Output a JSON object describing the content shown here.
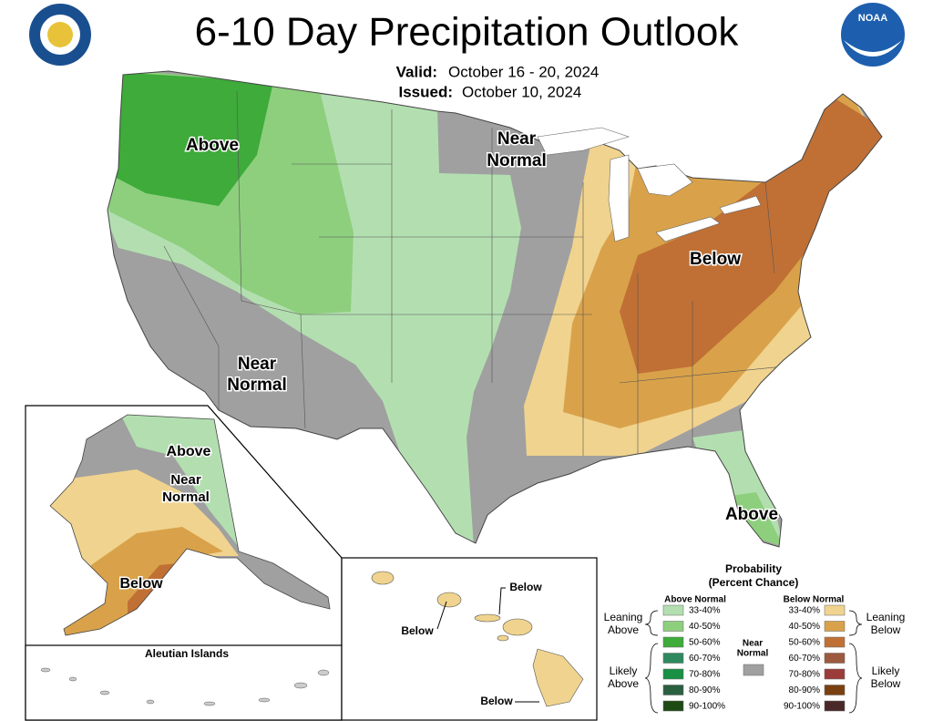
{
  "header": {
    "title": "6-10 Day Precipitation Outlook",
    "valid_label": "Valid:",
    "valid": "October 16 - 20, 2024",
    "issued_label": "Issued:",
    "issued": "October 10, 2024",
    "logo": "NOAA"
  },
  "conus_labels": [
    [
      "Above"
    ],
    [
      "Near",
      "Normal"
    ],
    [
      "Below"
    ],
    [
      "Near",
      "Normal"
    ],
    [
      "Above"
    ]
  ],
  "alaska_labels": [
    [
      "Above"
    ],
    [
      "Near",
      "Normal"
    ],
    [
      "Below"
    ]
  ],
  "aleutian_title": "Aleutian Islands",
  "hawaii_labels": [
    "Below",
    "Below",
    "Below"
  ],
  "legend": {
    "title": [
      "Probability",
      "(Percent Chance)"
    ],
    "above_title": "Above Normal",
    "below_title": "Below Normal",
    "near": {
      "label": [
        "Near",
        "Normal"
      ],
      "color": "#a0a0a0"
    },
    "above": [
      {
        "range": "33-40%",
        "color": "#b3dfb0"
      },
      {
        "range": "40-50%",
        "color": "#8ecf7e"
      },
      {
        "range": "50-60%",
        "color": "#3eab3a"
      },
      {
        "range": "60-70%",
        "color": "#2e8a5e"
      },
      {
        "range": "70-80%",
        "color": "#199044"
      },
      {
        "range": "80-90%",
        "color": "#2a6040"
      },
      {
        "range": "90-100%",
        "color": "#1e4a14"
      }
    ],
    "below": [
      {
        "range": "33-40%",
        "color": "#f0d38e"
      },
      {
        "range": "40-50%",
        "color": "#d9a24a"
      },
      {
        "range": "50-60%",
        "color": "#c07035"
      },
      {
        "range": "60-70%",
        "color": "#9c5a3e"
      },
      {
        "range": "70-80%",
        "color": "#9c3c3a"
      },
      {
        "range": "80-90%",
        "color": "#7a4010"
      },
      {
        "range": "90-100%",
        "color": "#4a2828"
      }
    ],
    "groups": {
      "leaning_above": [
        "Leaning",
        "Above"
      ],
      "likely_above": [
        "Likely",
        "Above"
      ],
      "leaning_below": [
        "Leaning",
        "Below"
      ],
      "likely_below": [
        "Likely",
        "Below"
      ]
    }
  }
}
